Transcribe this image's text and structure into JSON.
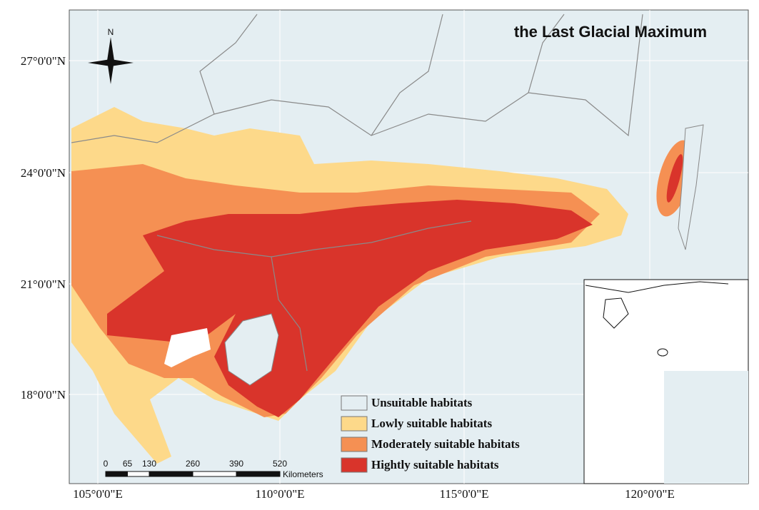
{
  "map": {
    "title": "the Last Glacial Maximum",
    "lat_labels": [
      "27°0'0\"N",
      "24°0'0\"N",
      "21°0'0\"N",
      "18°0'0\"N"
    ],
    "lon_labels": [
      "105°0'0\"E",
      "110°0'0\"E",
      "115°0'0\"E",
      "120°0'0\"E"
    ],
    "north_label": "N",
    "legend": [
      {
        "label": "Unsuitable habitats",
        "color": "#e4eef2"
      },
      {
        "label": "Lowly suitable habitats",
        "color": "#fdd98a"
      },
      {
        "label": "Moderately suitable habitats",
        "color": "#f59053"
      },
      {
        "label": "Hightly suitable habitats",
        "color": "#d9342b"
      }
    ],
    "scale_ticks": [
      0,
      65,
      130,
      260,
      390,
      520
    ],
    "scale_unit": "Kilometers"
  }
}
